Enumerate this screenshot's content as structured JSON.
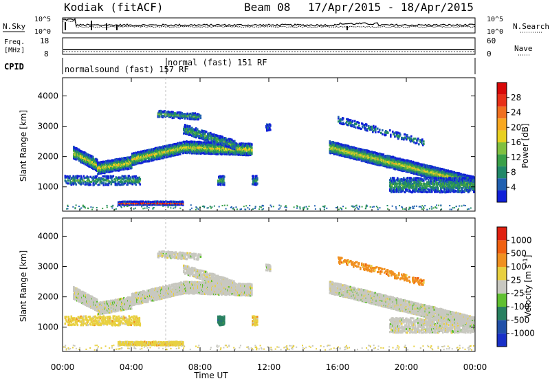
{
  "header": {
    "station": "Kodiak (fitACF)",
    "beam": "Beam 08",
    "daterange": "17/Apr/2015 - 18/Apr/2015"
  },
  "noise_panel": {
    "left_label": "N.Sky",
    "right_label": "N.Search",
    "left_ticks": [
      "10^5",
      "10^0"
    ],
    "right_ticks": [
      "10^5",
      "10^0"
    ]
  },
  "freq_panel": {
    "left_label_1": "Freq.",
    "left_label_2": "[MHz]",
    "right_label": "Nave",
    "left_ticks": [
      "18",
      "8"
    ],
    "right_ticks": [
      "60",
      "0"
    ]
  },
  "cpid": {
    "label": "CPID",
    "mode1": "normalsound (fast) 157 RF",
    "mode2": "normal (fast) 151 RF"
  },
  "chart_data": [
    {
      "type": "heatmap",
      "name": "power",
      "ylabel": "Slant Range [km]",
      "xlabel": "",
      "x_ticks": [
        "00:00",
        "04:00",
        "08:00",
        "12:00",
        "16:00",
        "20:00",
        "00:00"
      ],
      "xlim_hours": [
        0,
        24
      ],
      "y_ticks": [
        1000,
        2000,
        3000,
        4000
      ],
      "ylim": [
        200,
        4600
      ],
      "colorbar": {
        "label": "Power [dB]",
        "ticks": [
          "4",
          "8",
          "12",
          "16",
          "20",
          "24",
          "28"
        ],
        "colors": [
          "#1020d8",
          "#2060b0",
          "#208868",
          "#3aa048",
          "#80c040",
          "#e8d020",
          "#f8a820",
          "#f07020",
          "#e83018",
          "#d80808"
        ]
      }
    },
    {
      "type": "heatmap",
      "name": "velocity",
      "ylabel": "Slant Range [km]",
      "xlabel": "Time UT",
      "x_ticks": [
        "00:00",
        "04:00",
        "08:00",
        "12:00",
        "16:00",
        "20:00",
        "00:00"
      ],
      "xlim_hours": [
        0,
        24
      ],
      "y_ticks": [
        1000,
        2000,
        3000,
        4000
      ],
      "ylim": [
        200,
        4600
      ],
      "colorbar": {
        "label": "Velocity [m s^-1]",
        "ticks": [
          "1000",
          "500",
          "100",
          "25",
          "-25",
          "-100",
          "-500",
          "-1000"
        ],
        "colors": [
          "#1830c8",
          "#2050a8",
          "#288060",
          "#60c030",
          "#c8c8c0",
          "#e8d040",
          "#f09020",
          "#f06010",
          "#e02010"
        ]
      }
    }
  ]
}
